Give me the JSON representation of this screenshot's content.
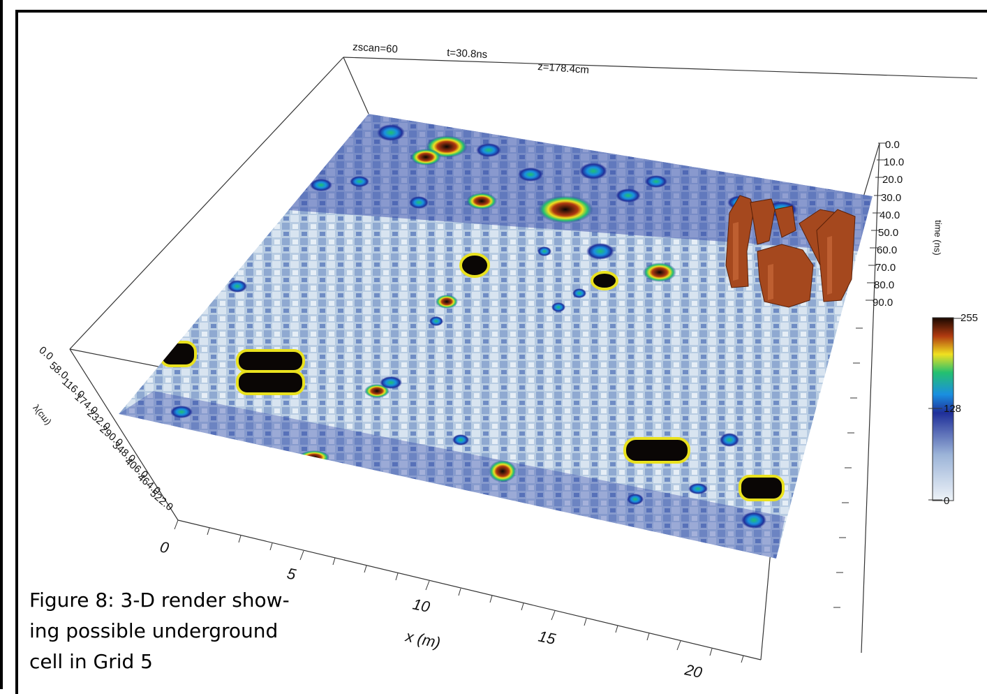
{
  "figure": {
    "header_labels": [
      "zscan=60",
      "t=30.8ns",
      "z=178.4cm"
    ],
    "caption_lines": [
      "Figure 8: 3-D render show-",
      "ing possible underground",
      "cell in Grid 5"
    ]
  },
  "axes": {
    "x": {
      "label": "x (m)",
      "ticks": [
        "0",
        "5",
        "10",
        "15",
        "20"
      ]
    },
    "y": {
      "label": "y(cm)",
      "ticks": [
        "0.0",
        "58.0",
        "116.0",
        "174.0",
        "232.0",
        "290.0",
        "348.0",
        "406.0",
        "464.0",
        "522.0"
      ]
    },
    "time": {
      "label": "time (ns)",
      "ticks": [
        "0.0",
        "10.0",
        "20.0",
        "30.0",
        "40.0",
        "50.0",
        "60.0",
        "70.0",
        "80.0",
        "90.0"
      ]
    }
  },
  "colorbar": {
    "ticks": [
      "255",
      "128",
      "0"
    ],
    "colors": [
      "#e8f0f6",
      "#8aa6cf",
      "#1d2f9a",
      "#1aa0e0",
      "#20c070",
      "#f0e020",
      "#c04010",
      "#1a0a00"
    ]
  },
  "colors": {
    "slice_background": "#b9cde3",
    "anomaly_core": "#0a0605",
    "anomaly_ring": "#e9e11e",
    "isosurface": "#a5481e"
  }
}
